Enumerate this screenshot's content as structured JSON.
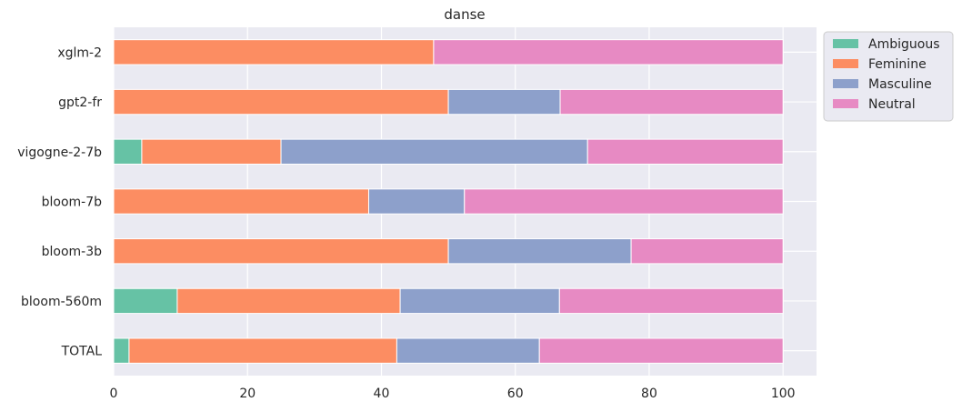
{
  "chart_data": {
    "type": "bar",
    "orientation": "horizontal",
    "stacked": true,
    "title": "danse",
    "xlabel": "",
    "ylabel": "",
    "xlim": [
      0,
      105
    ],
    "xticks": [
      0,
      20,
      40,
      60,
      80,
      100
    ],
    "grid": true,
    "legend_position": "outside-top-right",
    "categories": [
      "TOTAL",
      "bloom-560m",
      "bloom-3b",
      "bloom-7b",
      "vigogne-2-7b",
      "gpt2-fr",
      "xglm-2"
    ],
    "series": [
      {
        "name": "Ambiguous",
        "color": "#66c2a5",
        "values": [
          2.3,
          9.5,
          0,
          0,
          4.2,
          0,
          0
        ]
      },
      {
        "name": "Feminine",
        "color": "#fc8d62",
        "values": [
          40.0,
          33.3,
          50.0,
          38.1,
          20.8,
          50.0,
          47.8
        ]
      },
      {
        "name": "Masculine",
        "color": "#8da0cb",
        "values": [
          21.3,
          23.8,
          27.3,
          14.3,
          45.8,
          16.7,
          0
        ]
      },
      {
        "name": "Neutral",
        "color": "#e78ac3",
        "values": [
          36.4,
          33.4,
          22.7,
          47.6,
          29.2,
          33.3,
          52.2
        ]
      }
    ]
  }
}
